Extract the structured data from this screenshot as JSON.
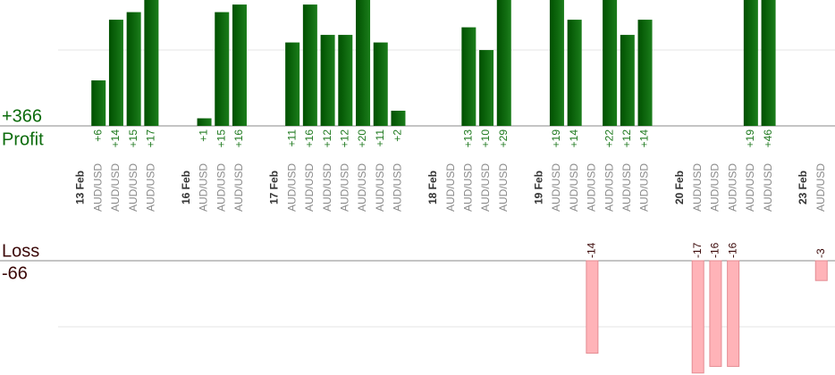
{
  "chart_data": {
    "type": "bar",
    "profit_total": "+366",
    "profit_title": "Profit",
    "loss_title": "Loss",
    "loss_total": "-66",
    "profit_color": "#0b650b",
    "loss_color": "#ffb3b8",
    "profit_ylim": [
      0,
      16.6
    ],
    "profit_yticks": [
      10
    ],
    "loss_ylim": [
      -17.3,
      0
    ],
    "loss_yticks": [
      -10
    ],
    "categories": [
      "13 Feb",
      "AUD/USD",
      "AUD/USD",
      "AUD/USD",
      "AUD/USD",
      null,
      "16 Feb",
      "AUD/USD",
      "AUD/USD",
      "AUD/USD",
      null,
      "17 Feb",
      "AUD/USD",
      "AUD/USD",
      "AUD/USD",
      "AUD/USD",
      "AUD/USD",
      "AUD/USD",
      "AUD/USD",
      null,
      "18 Feb",
      "AUD/USD",
      "AUD/USD",
      "AUD/USD",
      "AUD/USD",
      null,
      "19 Feb",
      "AUD/USD",
      "AUD/USD",
      "AUD/USD",
      "AUD/USD",
      "AUD/USD",
      "AUD/USD",
      null,
      "20 Feb",
      "AUD/USD",
      "AUD/USD",
      "AUD/USD",
      "AUD/USD",
      "AUD/USD",
      null,
      "23 Feb",
      "AUD/USD"
    ],
    "values": [
      null,
      6,
      14,
      15,
      17,
      null,
      null,
      1,
      15,
      16,
      null,
      null,
      11,
      16,
      12,
      12,
      20,
      11,
      2,
      null,
      null,
      0,
      13,
      10,
      29,
      null,
      null,
      19,
      14,
      -14,
      22,
      12,
      14,
      null,
      null,
      -17,
      -16,
      -16,
      19,
      46,
      null,
      null,
      -3
    ],
    "value_labels": [
      null,
      "+6",
      "+14",
      "+15",
      "+17",
      null,
      null,
      "+1",
      "+15",
      "+16",
      null,
      null,
      "+11",
      "+16",
      "+12",
      "+12",
      "+20",
      "+11",
      "+2",
      null,
      null,
      null,
      "+13",
      "+10",
      "+29",
      null,
      null,
      "+19",
      "+14",
      "-14",
      "+22",
      "+12",
      "+14",
      null,
      null,
      "-17",
      "-16",
      "-16",
      "+19",
      "+46",
      null,
      null,
      "-3"
    ]
  }
}
